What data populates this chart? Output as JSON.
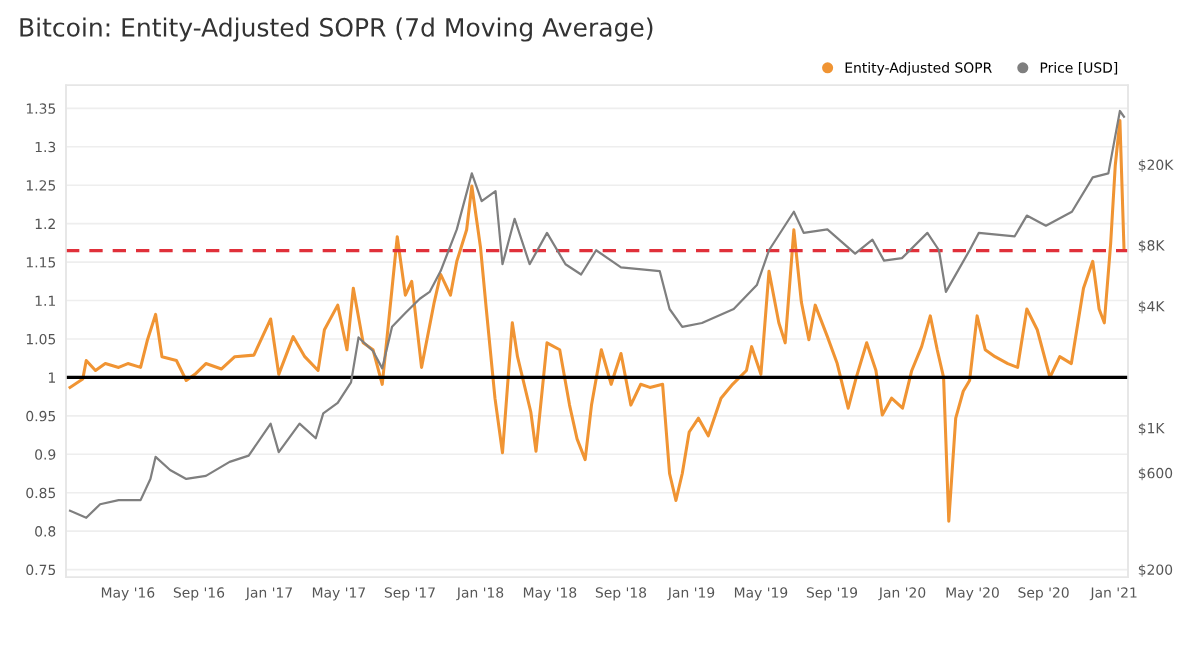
{
  "chart_data": {
    "type": "line",
    "title": "Bitcoin: Entity-Adjusted SOPR (7d Moving Average)",
    "xlim": [
      "2016-01-15",
      "2021-01-25"
    ],
    "xticks": [
      {
        "value": "2016-05-01",
        "label": "May '16"
      },
      {
        "value": "2016-09-01",
        "label": "Sep '16"
      },
      {
        "value": "2017-01-01",
        "label": "Jan '17"
      },
      {
        "value": "2017-05-01",
        "label": "May '17"
      },
      {
        "value": "2017-09-01",
        "label": "Sep '17"
      },
      {
        "value": "2018-01-01",
        "label": "Jan '18"
      },
      {
        "value": "2018-05-01",
        "label": "May '18"
      },
      {
        "value": "2018-09-01",
        "label": "Sep '18"
      },
      {
        "value": "2019-01-01",
        "label": "Jan '19"
      },
      {
        "value": "2019-05-01",
        "label": "May '19"
      },
      {
        "value": "2019-09-01",
        "label": "Sep '19"
      },
      {
        "value": "2020-01-01",
        "label": "Jan '20"
      },
      {
        "value": "2020-05-01",
        "label": "May '20"
      },
      {
        "value": "2020-09-01",
        "label": "Sep '20"
      },
      {
        "value": "2021-01-01",
        "label": "Jan '21"
      }
    ],
    "ylim": [
      0.74,
      1.38
    ],
    "yticks": [
      0.75,
      0.8,
      0.85,
      0.9,
      0.95,
      1,
      1.05,
      1.1,
      1.15,
      1.2,
      1.25,
      1.3,
      1.35
    ],
    "log": "y2",
    "y2lim": [
      183,
      49300
    ],
    "y2ticks": [
      {
        "value": 200,
        "label": "$200"
      },
      {
        "value": 600,
        "label": "$600"
      },
      {
        "value": 1000,
        "label": "$1K"
      },
      {
        "value": 4000,
        "label": "$4K"
      },
      {
        "value": 8000,
        "label": "$8K"
      },
      {
        "value": 20000,
        "label": "$20K"
      }
    ],
    "grid": "y",
    "legend": "top right",
    "ref_lines": [
      {
        "axis": "y",
        "value": 1,
        "color": "#000000",
        "line_style": "solid"
      },
      {
        "axis": "y",
        "value": 1.165,
        "color": "#e0303a",
        "line_style": "dashed"
      }
    ],
    "series": [
      {
        "name": "Price [USD]",
        "color": "#7f7f7f",
        "axis": "y2",
        "x": [
          "2016-01-22",
          "2016-02-19",
          "2016-03-14",
          "2016-04-15",
          "2016-05-23",
          "2016-06-09",
          "2016-06-18",
          "2016-07-13",
          "2016-08-10",
          "2016-09-13",
          "2016-10-24",
          "2016-11-26",
          "2017-01-03",
          "2017-01-17",
          "2017-02-22",
          "2017-03-22",
          "2017-04-04",
          "2017-04-29",
          "2017-05-22",
          "2017-06-04",
          "2017-06-29",
          "2017-07-15",
          "2017-08-01",
          "2017-08-24",
          "2017-09-18",
          "2017-10-05",
          "2017-10-24",
          "2017-11-21",
          "2017-12-17",
          "2018-01-03",
          "2018-01-27",
          "2018-02-08",
          "2018-03-01",
          "2018-03-27",
          "2018-04-26",
          "2018-05-28",
          "2018-06-24",
          "2018-07-20",
          "2018-09-01",
          "2018-11-07",
          "2018-11-24",
          "2018-12-16",
          "2019-01-19",
          "2019-03-15",
          "2019-04-24",
          "2019-05-15",
          "2019-06-27",
          "2019-07-14",
          "2019-08-24",
          "2019-10-11",
          "2019-11-10",
          "2019-11-30",
          "2019-12-31",
          "2020-02-13",
          "2020-03-04",
          "2020-03-16",
          "2020-04-26",
          "2020-05-12",
          "2020-07-13",
          "2020-08-03",
          "2020-09-05",
          "2020-10-20",
          "2020-11-25",
          "2020-12-22",
          "2021-01-11",
          "2021-01-18"
        ],
        "values": [
          390,
          360,
          420,
          440,
          440,
          560,
          720,
          620,
          560,
          580,
          680,
          730,
          1050,
          760,
          1050,
          890,
          1180,
          1330,
          1680,
          2800,
          2400,
          1970,
          3160,
          3700,
          4350,
          4700,
          5960,
          9570,
          18100,
          13200,
          14800,
          6440,
          10800,
          6440,
          9200,
          6440,
          5730,
          7550,
          6210,
          5960,
          3870,
          3160,
          3300,
          3870,
          5080,
          7550,
          11700,
          9200,
          9570,
          7260,
          8510,
          6710,
          6900,
          9200,
          7550,
          4700,
          7550,
          9200,
          8850,
          11200,
          9980,
          11700,
          17300,
          18100,
          36800,
          34500
        ],
        "marker": "none",
        "line_style": "solid"
      },
      {
        "name": "Entity-Adjusted SOPR",
        "color": "#f09433",
        "axis": "y",
        "x": [
          "2016-01-22",
          "2016-02-13",
          "2016-02-19",
          "2016-03-06",
          "2016-03-23",
          "2016-04-15",
          "2016-05-01",
          "2016-05-23",
          "2016-06-04",
          "2016-06-18",
          "2016-06-29",
          "2016-07-24",
          "2016-08-10",
          "2016-08-25",
          "2016-09-13",
          "2016-10-10",
          "2016-11-02",
          "2016-12-05",
          "2017-01-03",
          "2017-01-17",
          "2017-02-11",
          "2017-03-03",
          "2017-03-26",
          "2017-04-06",
          "2017-04-29",
          "2017-05-15",
          "2017-05-26",
          "2017-06-12",
          "2017-06-29",
          "2017-07-15",
          "2017-08-01",
          "2017-08-10",
          "2017-08-24",
          "2017-09-04",
          "2017-09-21",
          "2017-10-13",
          "2017-10-24",
          "2017-11-10",
          "2017-11-21",
          "2017-12-08",
          "2017-12-17",
          "2018-01-01",
          "2018-01-11",
          "2018-01-26",
          "2018-02-08",
          "2018-02-25",
          "2018-03-06",
          "2018-03-29",
          "2018-04-07",
          "2018-04-26",
          "2018-05-18",
          "2018-06-04",
          "2018-06-17",
          "2018-07-01",
          "2018-07-12",
          "2018-07-29",
          "2018-08-15",
          "2018-09-01",
          "2018-09-18",
          "2018-10-05",
          "2018-10-21",
          "2018-11-12",
          "2018-11-24",
          "2018-12-05",
          "2018-12-16",
          "2018-12-28",
          "2019-01-13",
          "2019-01-30",
          "2019-02-21",
          "2019-03-13",
          "2019-04-06",
          "2019-04-15",
          "2019-05-01",
          "2019-05-15",
          "2019-06-01",
          "2019-06-12",
          "2019-06-27",
          "2019-07-10",
          "2019-07-23",
          "2019-08-03",
          "2019-08-24",
          "2019-09-10",
          "2019-09-29",
          "2019-10-13",
          "2019-10-31",
          "2019-11-16",
          "2019-11-27",
          "2019-12-13",
          "2020-01-01",
          "2020-01-17",
          "2020-02-03",
          "2020-02-18",
          "2020-03-01",
          "2020-03-12",
          "2020-03-21",
          "2020-04-02",
          "2020-04-15",
          "2020-04-26",
          "2020-05-09",
          "2020-05-23",
          "2020-06-09",
          "2020-07-01",
          "2020-07-18",
          "2020-08-03",
          "2020-08-21",
          "2020-09-12",
          "2020-09-29",
          "2020-10-19",
          "2020-11-09",
          "2020-11-25",
          "2020-12-06",
          "2020-12-15",
          "2020-12-26",
          "2021-01-03",
          "2021-01-11",
          "2021-01-18"
        ],
        "values": [
          0.987,
          0.998,
          1.022,
          1.009,
          1.018,
          1.013,
          1.018,
          1.013,
          1.049,
          1.082,
          1.027,
          1.022,
          0.996,
          1.004,
          1.018,
          1.011,
          1.027,
          1.029,
          1.076,
          1.004,
          1.053,
          1.027,
          1.009,
          1.062,
          1.094,
          1.036,
          1.116,
          1.045,
          1.036,
          0.991,
          1.116,
          1.183,
          1.107,
          1.125,
          1.013,
          1.098,
          1.134,
          1.107,
          1.151,
          1.192,
          1.249,
          1.169,
          1.089,
          0.973,
          0.902,
          1.071,
          1.027,
          0.955,
          0.904,
          1.045,
          1.036,
          0.964,
          0.92,
          0.893,
          0.964,
          1.036,
          0.991,
          1.031,
          0.964,
          0.991,
          0.987,
          0.991,
          0.875,
          0.84,
          0.875,
          0.929,
          0.947,
          0.924,
          0.973,
          0.991,
          1.009,
          1.04,
          1.004,
          1.138,
          1.071,
          1.045,
          1.192,
          1.098,
          1.049,
          1.094,
          1.053,
          1.018,
          0.96,
          1.0,
          1.045,
          1.009,
          0.951,
          0.973,
          0.96,
          1.009,
          1.04,
          1.08,
          1.036,
          1.0,
          0.813,
          0.947,
          0.982,
          0.996,
          1.08,
          1.036,
          1.027,
          1.018,
          1.013,
          1.089,
          1.062,
          1.0,
          1.027,
          1.018,
          1.116,
          1.151,
          1.089,
          1.071,
          1.174,
          1.276,
          1.334,
          1.169
        ],
        "marker": "none",
        "line_style": "solid"
      }
    ]
  }
}
